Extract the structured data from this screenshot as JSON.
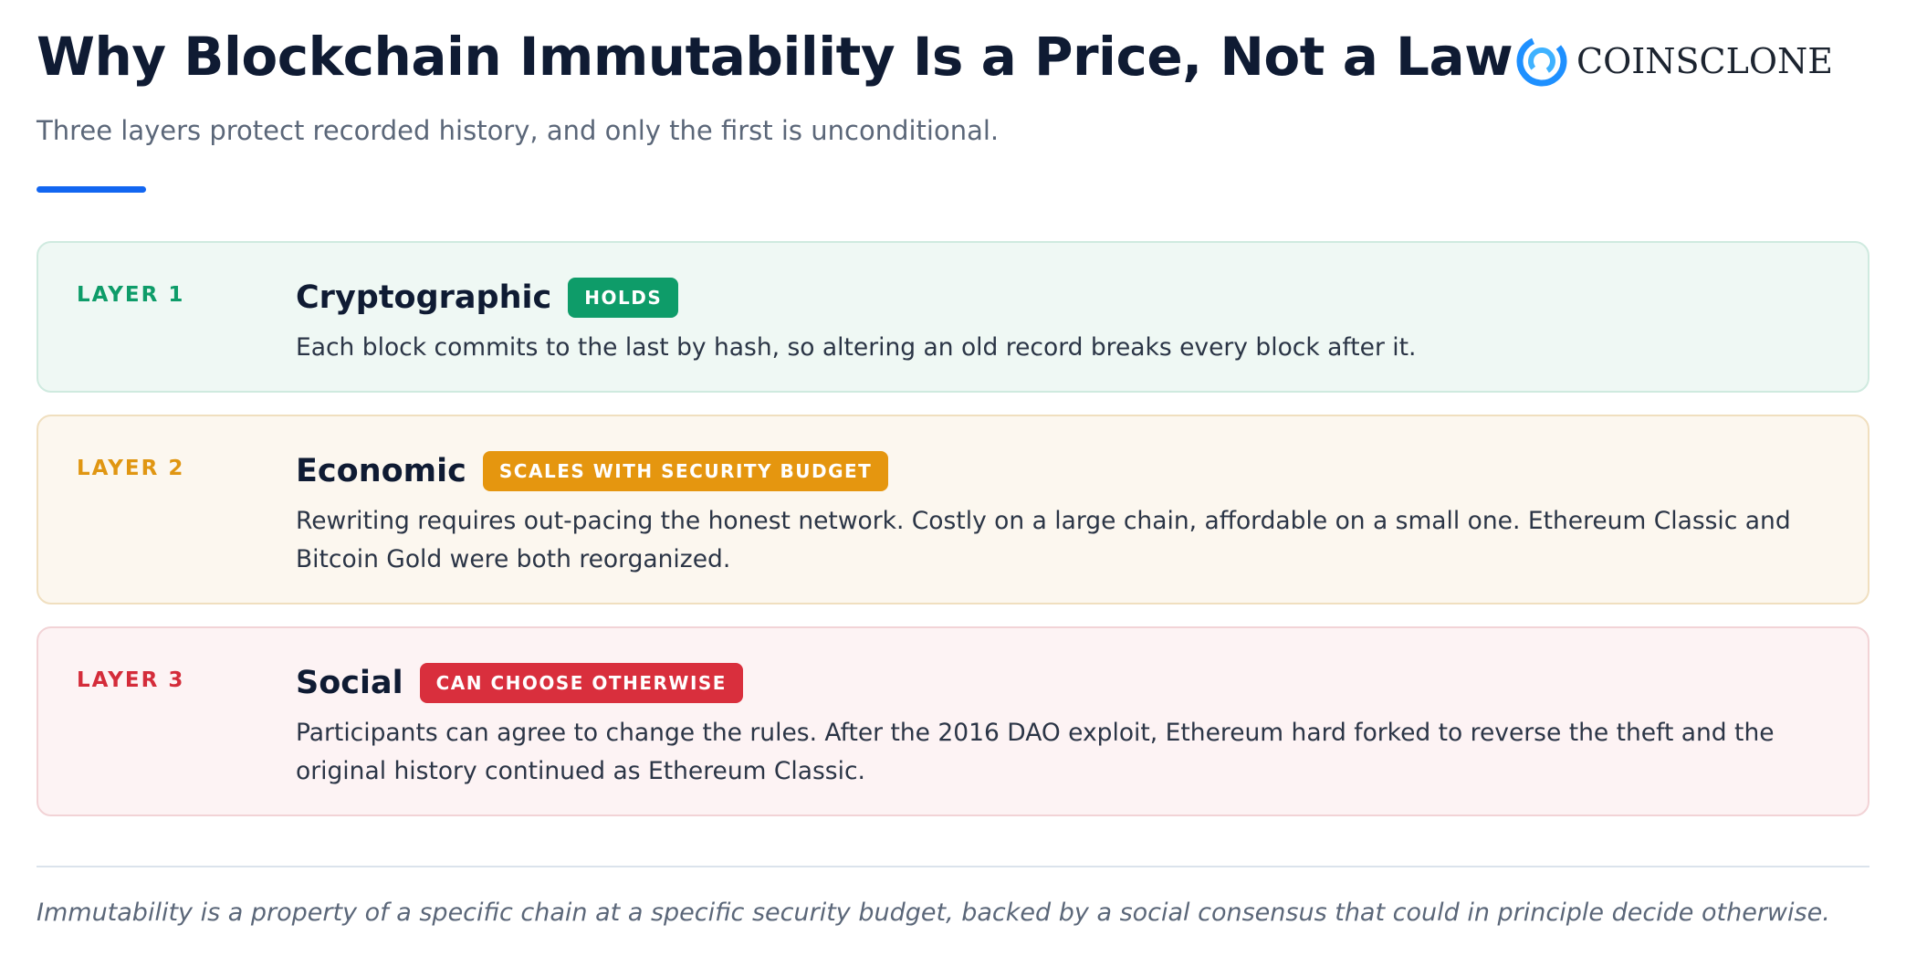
{
  "header": {
    "title": "Why Blockchain Immutability Is a Price, Not a Law",
    "subtitle": "Three layers protect recorded history, and only the first is unconditional.",
    "accent_color": "#1266f1"
  },
  "logo": {
    "text": "COINSCLONE",
    "icon": "coinsclone-ring-icon",
    "color": "#1e90ff"
  },
  "layers": [
    {
      "label": "LAYER 1",
      "title": "Cryptographic",
      "badge": "HOLDS",
      "description": "Each block commits to the last by hash, so altering an old record breaks every block after it.",
      "color": "#0e9c69"
    },
    {
      "label": "LAYER 2",
      "title": "Economic",
      "badge": "SCALES WITH SECURITY BUDGET",
      "description": "Rewriting requires out-pacing the honest network. Costly on a large chain, affordable on a small one. Ethereum Classic and Bitcoin Gold were both reorganized.",
      "color": "#e5960f"
    },
    {
      "label": "LAYER 3",
      "title": "Social",
      "badge": "CAN CHOOSE OTHERWISE",
      "description": "Participants can agree to change the rules. After the 2016 DAO exploit, Ethereum hard forked to reverse the theft and the original history continued as Ethereum Classic.",
      "color": "#d92f3d"
    }
  ],
  "footer": {
    "note": "Immutability is a property of a specific chain at a specific security budget, backed by a social consensus that could in principle decide otherwise."
  }
}
